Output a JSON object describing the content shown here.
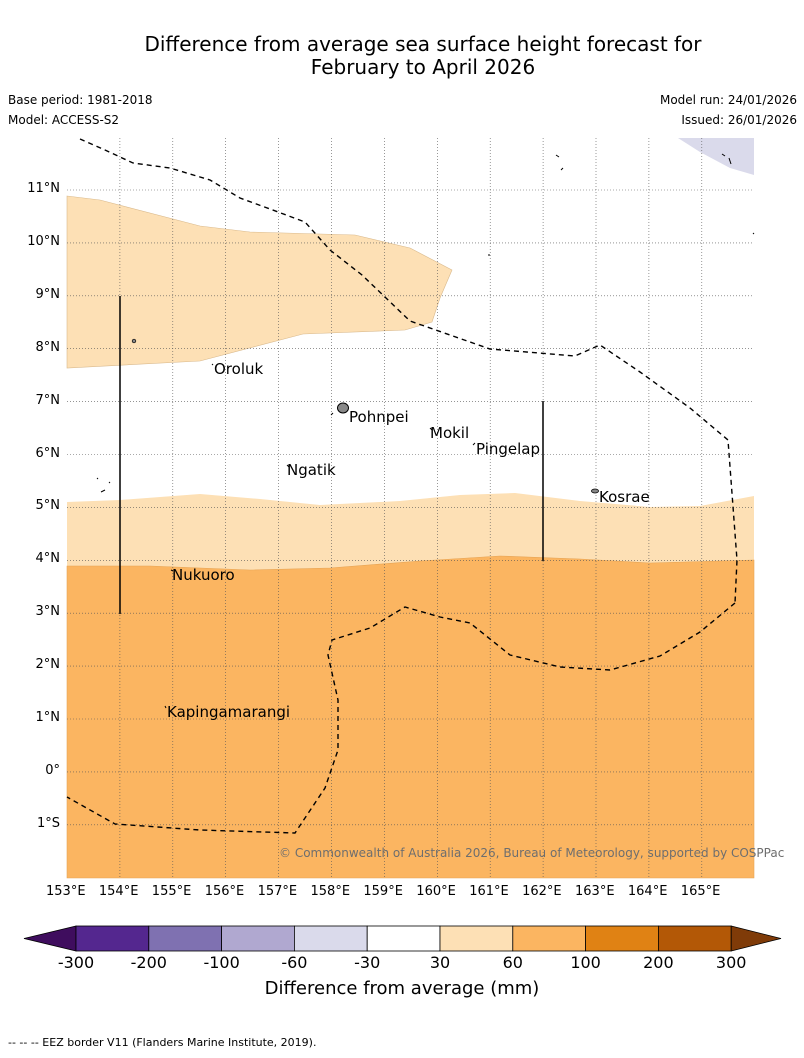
{
  "title_line1": "Difference from average sea surface height forecast for",
  "title_line2": "February to April 2026",
  "meta": {
    "base_period": "Base period: 1981-2018",
    "model": "Model: ACCESS-S2",
    "model_run": "Model run: 24/01/2026",
    "issued": "Issued: 26/01/2026"
  },
  "lat_labels": [
    "11°N",
    "10°N",
    "9°N",
    "8°N",
    "7°N",
    "6°N",
    "5°N",
    "4°N",
    "3°N",
    "2°N",
    "1°N",
    "0°",
    "1°S"
  ],
  "lon_labels": [
    "153°E",
    "154°E",
    "155°E",
    "156°E",
    "157°E",
    "158°E",
    "159°E",
    "160°E",
    "161°E",
    "162°E",
    "163°E",
    "164°E",
    "165°E"
  ],
  "places": {
    "oroluk": "Oroluk",
    "pohnpei": "Pohnpei",
    "mokil": "Mokil",
    "pingelap": "Pingelap",
    "ngatik": "Ngatik",
    "kosrae": "Kosrae",
    "nukuoro": "Nukuoro",
    "kapingamarangi": "Kapingamarangi"
  },
  "copyright": "© Commonwealth of Australia 2026, Bureau of Meteorology, supported by COSPPac",
  "colorbar": {
    "ticks": [
      "-300",
      "-200",
      "-100",
      "-60",
      "-30",
      "30",
      "60",
      "100",
      "200",
      "300"
    ],
    "title": "Difference from average (mm)",
    "colors": [
      "#3f0d5e",
      "#54278f",
      "#7f71b1",
      "#b0a8d0",
      "#dadaeb",
      "#ffffff",
      "#fde0b5",
      "#fbb561",
      "#e08214",
      "#b35806",
      "#7f3b08"
    ]
  },
  "footer": "-- -- -- EEZ border V11 (Flanders Marine Institute, 2019)."
}
